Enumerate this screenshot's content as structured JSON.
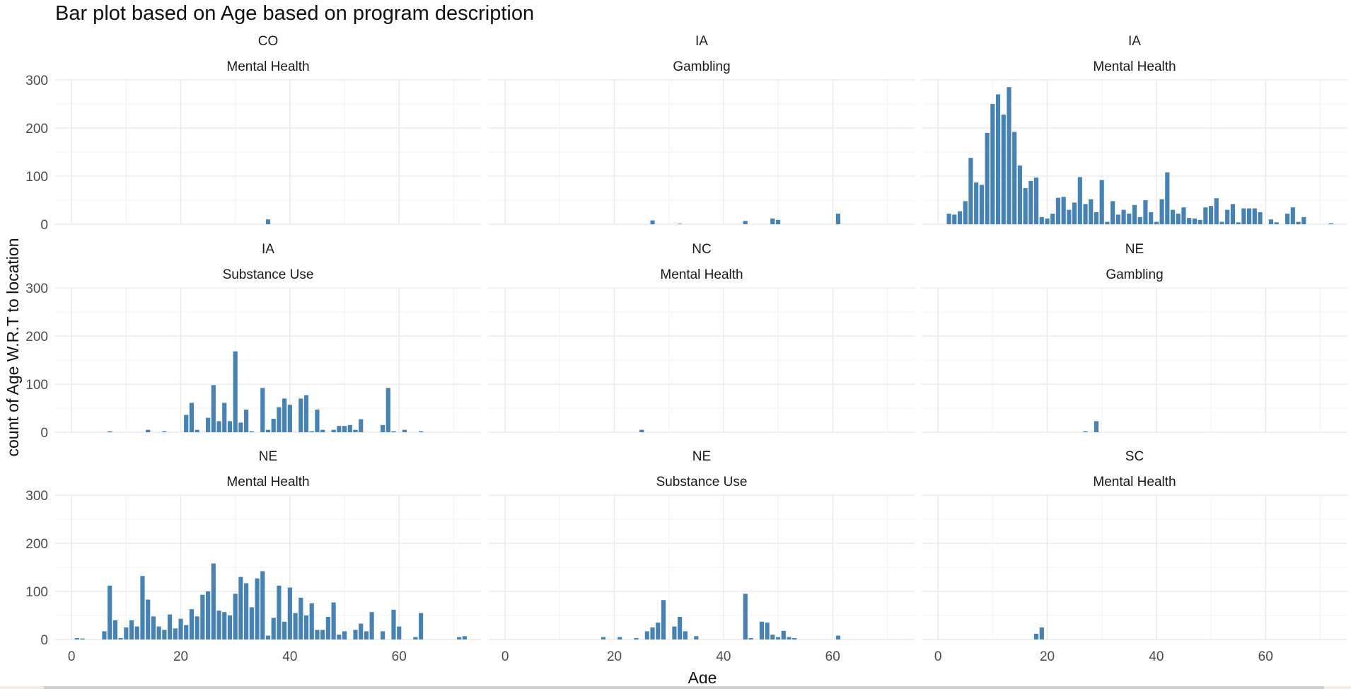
{
  "chart_data": {
    "type": "bar",
    "title": "Bar plot based on Age based on program description",
    "xlabel": "Age",
    "ylabel": "count of Age W.R.T to location",
    "xlim": [
      -3,
      75
    ],
    "ylim": [
      0,
      300
    ],
    "x_ticks": [
      0,
      20,
      40,
      60
    ],
    "y_ticks": [
      0,
      100,
      200,
      300
    ],
    "bar_color": "#4682b4",
    "grid": true,
    "panels": [
      {
        "location": "CO",
        "program": "Mental Health",
        "bars": [
          [
            36,
            10
          ]
        ]
      },
      {
        "location": "IA",
        "program": "Gambling",
        "bars": [
          [
            27,
            8
          ],
          [
            32,
            1
          ],
          [
            44,
            7
          ],
          [
            49,
            12
          ],
          [
            50,
            9
          ],
          [
            61,
            22
          ]
        ]
      },
      {
        "location": "IA",
        "program": "Mental Health",
        "bars": [
          [
            2,
            22
          ],
          [
            3,
            20
          ],
          [
            4,
            27
          ],
          [
            5,
            48
          ],
          [
            6,
            138
          ],
          [
            7,
            87
          ],
          [
            8,
            82
          ],
          [
            9,
            190
          ],
          [
            10,
            250
          ],
          [
            11,
            270
          ],
          [
            12,
            228
          ],
          [
            13,
            285
          ],
          [
            14,
            192
          ],
          [
            15,
            122
          ],
          [
            16,
            75
          ],
          [
            17,
            90
          ],
          [
            18,
            97
          ],
          [
            19,
            15
          ],
          [
            20,
            12
          ],
          [
            21,
            22
          ],
          [
            22,
            55
          ],
          [
            23,
            57
          ],
          [
            24,
            30
          ],
          [
            25,
            45
          ],
          [
            26,
            98
          ],
          [
            27,
            42
          ],
          [
            28,
            52
          ],
          [
            29,
            25
          ],
          [
            30,
            92
          ],
          [
            31,
            5
          ],
          [
            32,
            48
          ],
          [
            33,
            20
          ],
          [
            34,
            30
          ],
          [
            35,
            22
          ],
          [
            36,
            40
          ],
          [
            37,
            15
          ],
          [
            38,
            50
          ],
          [
            39,
            25
          ],
          [
            40,
            5
          ],
          [
            41,
            52
          ],
          [
            42,
            108
          ],
          [
            43,
            30
          ],
          [
            44,
            22
          ],
          [
            45,
            35
          ],
          [
            46,
            13
          ],
          [
            47,
            12
          ],
          [
            48,
            9
          ],
          [
            49,
            35
          ],
          [
            50,
            38
          ],
          [
            51,
            54
          ],
          [
            52,
            5
          ],
          [
            53,
            30
          ],
          [
            54,
            42
          ],
          [
            55,
            4
          ],
          [
            56,
            33
          ],
          [
            57,
            33
          ],
          [
            58,
            33
          ],
          [
            59,
            25
          ],
          [
            61,
            10
          ],
          [
            62,
            4
          ],
          [
            64,
            22
          ],
          [
            65,
            35
          ],
          [
            66,
            5
          ],
          [
            67,
            15
          ],
          [
            72,
            2
          ]
        ]
      },
      {
        "location": "IA",
        "program": "Substance Use",
        "bars": [
          [
            7,
            2
          ],
          [
            14,
            5
          ],
          [
            17,
            2
          ],
          [
            21,
            36
          ],
          [
            22,
            61
          ],
          [
            23,
            5
          ],
          [
            25,
            30
          ],
          [
            26,
            98
          ],
          [
            27,
            23
          ],
          [
            28,
            61
          ],
          [
            29,
            23
          ],
          [
            30,
            168
          ],
          [
            31,
            20
          ],
          [
            32,
            47
          ],
          [
            33,
            2
          ],
          [
            35,
            92
          ],
          [
            36,
            5
          ],
          [
            37,
            28
          ],
          [
            38,
            52
          ],
          [
            39,
            70
          ],
          [
            40,
            57
          ],
          [
            42,
            70
          ],
          [
            43,
            77
          ],
          [
            44,
            2
          ],
          [
            45,
            47
          ],
          [
            46,
            5
          ],
          [
            48,
            5
          ],
          [
            49,
            13
          ],
          [
            50,
            13
          ],
          [
            51,
            15
          ],
          [
            52,
            5
          ],
          [
            53,
            27
          ],
          [
            57,
            15
          ],
          [
            58,
            92
          ],
          [
            59,
            2
          ],
          [
            61,
            5
          ],
          [
            64,
            2
          ]
        ]
      },
      {
        "location": "NC",
        "program": "Mental Health",
        "bars": [
          [
            25,
            5
          ]
        ]
      },
      {
        "location": "NE",
        "program": "Gambling",
        "bars": [
          [
            27,
            2
          ],
          [
            29,
            23
          ]
        ]
      },
      {
        "location": "NE",
        "program": "Mental Health",
        "bars": [
          [
            1,
            3
          ],
          [
            2,
            2
          ],
          [
            6,
            17
          ],
          [
            7,
            112
          ],
          [
            8,
            40
          ],
          [
            9,
            3
          ],
          [
            10,
            25
          ],
          [
            11,
            40
          ],
          [
            12,
            27
          ],
          [
            13,
            132
          ],
          [
            14,
            83
          ],
          [
            15,
            48
          ],
          [
            16,
            27
          ],
          [
            17,
            20
          ],
          [
            18,
            52
          ],
          [
            19,
            23
          ],
          [
            20,
            43
          ],
          [
            21,
            30
          ],
          [
            22,
            63
          ],
          [
            23,
            48
          ],
          [
            24,
            93
          ],
          [
            25,
            100
          ],
          [
            26,
            158
          ],
          [
            27,
            60
          ],
          [
            28,
            57
          ],
          [
            29,
            50
          ],
          [
            30,
            95
          ],
          [
            31,
            130
          ],
          [
            32,
            117
          ],
          [
            33,
            67
          ],
          [
            34,
            127
          ],
          [
            35,
            142
          ],
          [
            36,
            8
          ],
          [
            37,
            45
          ],
          [
            38,
            112
          ],
          [
            39,
            37
          ],
          [
            40,
            108
          ],
          [
            41,
            55
          ],
          [
            42,
            87
          ],
          [
            43,
            50
          ],
          [
            44,
            75
          ],
          [
            45,
            20
          ],
          [
            46,
            20
          ],
          [
            47,
            47
          ],
          [
            48,
            77
          ],
          [
            49,
            10
          ],
          [
            50,
            17
          ],
          [
            52,
            20
          ],
          [
            53,
            33
          ],
          [
            54,
            17
          ],
          [
            55,
            57
          ],
          [
            57,
            17
          ],
          [
            59,
            62
          ],
          [
            60,
            27
          ],
          [
            63,
            5
          ],
          [
            64,
            55
          ],
          [
            71,
            5
          ],
          [
            72,
            7
          ]
        ]
      },
      {
        "location": "NE",
        "program": "Substance Use",
        "bars": [
          [
            18,
            5
          ],
          [
            21,
            5
          ],
          [
            24,
            3
          ],
          [
            26,
            17
          ],
          [
            27,
            25
          ],
          [
            28,
            35
          ],
          [
            29,
            82
          ],
          [
            31,
            27
          ],
          [
            32,
            47
          ],
          [
            33,
            17
          ],
          [
            35,
            7
          ],
          [
            44,
            95
          ],
          [
            45,
            3
          ],
          [
            47,
            37
          ],
          [
            48,
            35
          ],
          [
            49,
            10
          ],
          [
            50,
            5
          ],
          [
            51,
            18
          ],
          [
            52,
            5
          ],
          [
            53,
            3
          ],
          [
            61,
            8
          ]
        ]
      },
      {
        "location": "SC",
        "program": "Mental Health",
        "bars": [
          [
            18,
            12
          ],
          [
            19,
            25
          ]
        ]
      }
    ]
  }
}
